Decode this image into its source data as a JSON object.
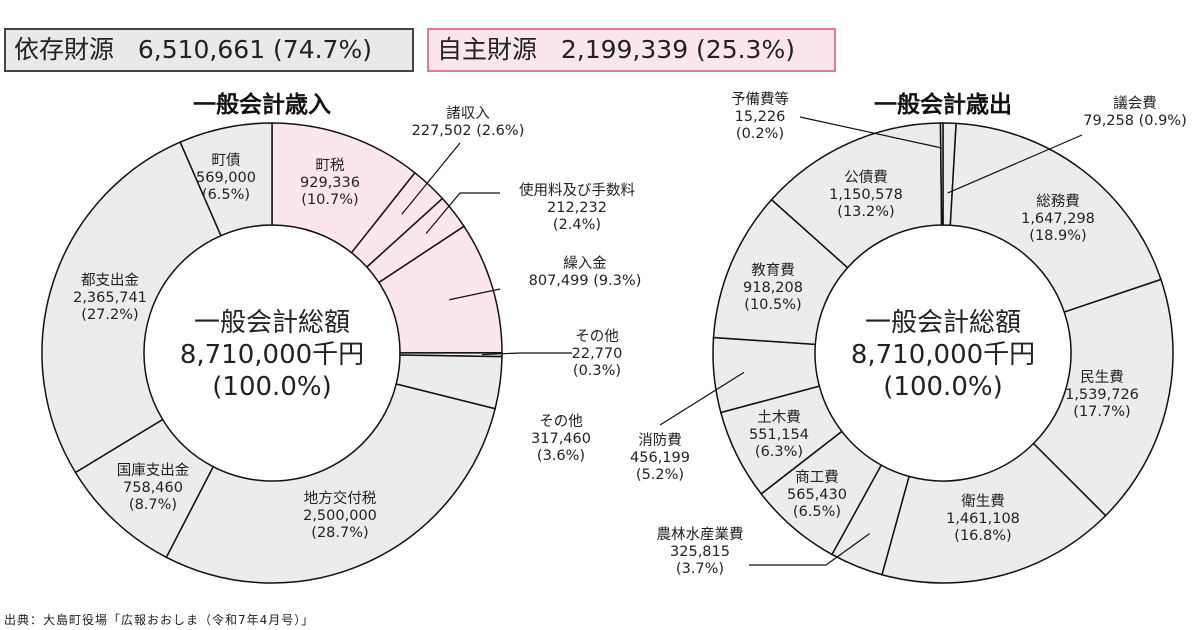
{
  "header": {
    "dependent": {
      "label": "依存財源",
      "value": "6,510,661",
      "pct": "(74.7%)"
    },
    "own": {
      "label": "自主財源",
      "value": "2,199,339",
      "pct": "(25.3%)"
    }
  },
  "source": "出典：大島町役場「広報おおしま（令和7年4月号）」",
  "colors": {
    "dependent": "#ececec",
    "own": "#fbe6ec",
    "border": "#111111"
  },
  "chart_data": [
    {
      "type": "pie",
      "title": "一般会計歳入",
      "center": [
        "一般会計総額",
        "8,710,000千円",
        "(100.0%)"
      ],
      "series": [
        {
          "label": "町税",
          "value": 929336,
          "pct": "(10.7%)",
          "display": "929,336",
          "group": "own"
        },
        {
          "label": "諸収入",
          "value": 227502,
          "pct": "(2.6%)",
          "display": "227,502",
          "group": "own"
        },
        {
          "label": "使用料及び手数料",
          "value": 212232,
          "pct": "(2.4%)",
          "display": "212,232",
          "group": "own"
        },
        {
          "label": "繰入金",
          "value": 807499,
          "pct": "(9.3%)",
          "display": "807,499",
          "group": "own"
        },
        {
          "label": "その他",
          "value": 22770,
          "pct": "(0.3%)",
          "display": "22,770",
          "group": "own"
        },
        {
          "label": "その他",
          "value": 317460,
          "pct": "(3.6%)",
          "display": "317,460",
          "group": "dependent"
        },
        {
          "label": "地方交付税",
          "value": 2500000,
          "pct": "(28.7%)",
          "display": "2,500,000",
          "group": "dependent"
        },
        {
          "label": "国庫支出金",
          "value": 758460,
          "pct": "(8.7%)",
          "display": "758,460",
          "group": "dependent"
        },
        {
          "label": "都支出金",
          "value": 2365741,
          "pct": "(27.2%)",
          "display": "2,365,741",
          "group": "dependent"
        },
        {
          "label": "町債",
          "value": 569000,
          "pct": "(6.5%)",
          "display": "569,000",
          "group": "dependent"
        }
      ]
    },
    {
      "type": "pie",
      "title": "一般会計歳出",
      "center": [
        "一般会計総額",
        "8,710,000千円",
        "(100.0%)"
      ],
      "series": [
        {
          "label": "議会費",
          "value": 79258,
          "pct": "(0.9%)",
          "display": "79,258"
        },
        {
          "label": "総務費",
          "value": 1647298,
          "pct": "(18.9%)",
          "display": "1,647,298"
        },
        {
          "label": "民生費",
          "value": 1539726,
          "pct": "(17.7%)",
          "display": "1,539,726"
        },
        {
          "label": "衛生費",
          "value": 1461108,
          "pct": "(16.8%)",
          "display": "1,461,108"
        },
        {
          "label": "農林水産業費",
          "value": 325815,
          "pct": "(3.7%)",
          "display": "325,815"
        },
        {
          "label": "商工費",
          "value": 565430,
          "pct": "(6.5%)",
          "display": "565,430"
        },
        {
          "label": "土木費",
          "value": 551154,
          "pct": "(6.3%)",
          "display": "551,154"
        },
        {
          "label": "消防費",
          "value": 456199,
          "pct": "(5.2%)",
          "display": "456,199"
        },
        {
          "label": "教育費",
          "value": 918208,
          "pct": "(10.5%)",
          "display": "918,208"
        },
        {
          "label": "公債費",
          "value": 1150578,
          "pct": "(13.2%)",
          "display": "1,150,578"
        },
        {
          "label": "予備費等",
          "value": 15226,
          "pct": "(0.2%)",
          "display": "15,226"
        }
      ]
    }
  ]
}
